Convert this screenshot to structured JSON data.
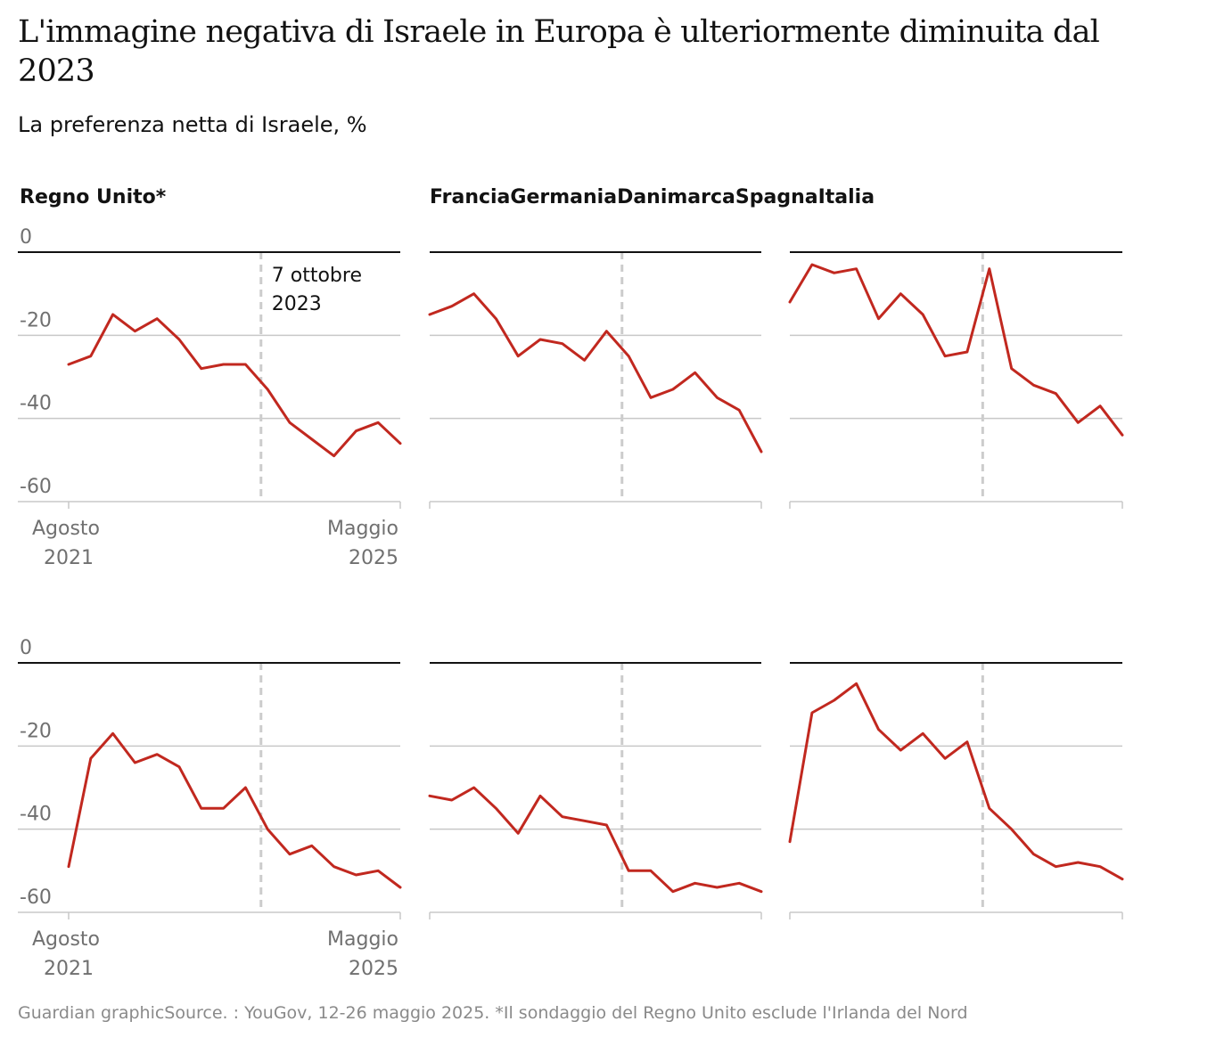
{
  "title": "L'immagine negativa di Israele in Europa è ulteriormente diminuita dal 2023",
  "subtitle": "La preferenza netta di Israele, %",
  "footer": "Guardian graphicSource. : YouGov, 12-26 maggio 2025. *Il sondaggio del Regno Unito esclude l'Irlanda del Nord",
  "colors": {
    "line": "#c1281f",
    "grid": "#c8c8c8",
    "zero": "#121212",
    "marker": "#cccccc"
  },
  "chart_data": {
    "type": "line",
    "layout": "small-multiples",
    "ylim": [
      -60,
      0
    ],
    "yticks": [
      0,
      -20,
      -40,
      -60
    ],
    "ytick_labels": [
      "0",
      "-20",
      "-40",
      "-60"
    ],
    "x_start_label": [
      "Agosto",
      "2021"
    ],
    "x_end_label": [
      "Maggio",
      "2025"
    ],
    "marker_label": [
      "7 ottobre",
      "2023"
    ],
    "marker_index": 8.7,
    "panels": [
      {
        "name": "Regno Unito*",
        "values": [
          -27,
          -25,
          -15,
          -19,
          -16,
          -21,
          -28,
          -27,
          -27,
          -33,
          -41,
          -45,
          -49,
          -43,
          -41,
          -46
        ]
      },
      {
        "name": "Francia",
        "values": [
          -15,
          -13,
          -10,
          -16,
          -25,
          -21,
          -22,
          -26,
          -19,
          -25,
          -35,
          -33,
          -29,
          -35,
          -38,
          -48
        ]
      },
      {
        "name": "Germania",
        "values": [
          -12,
          -3,
          -5,
          -4,
          -16,
          -10,
          -15,
          -25,
          -24,
          -4,
          -28,
          -32,
          -34,
          -41,
          -37,
          -44
        ]
      },
      {
        "name": "Danimarca",
        "values": [
          -49,
          -23,
          -17,
          -24,
          -22,
          -25,
          -35,
          -35,
          -30,
          -40,
          -46,
          -44,
          -49,
          -51,
          -50,
          -54
        ]
      },
      {
        "name": "Spagna",
        "values": [
          -32,
          -33,
          -30,
          -35,
          -41,
          -32,
          -37,
          -38,
          -39,
          -50,
          -50,
          -55,
          -53,
          -54,
          -53,
          -55
        ]
      },
      {
        "name": "Italia",
        "values": [
          -43,
          -12,
          -9,
          -5,
          -16,
          -21,
          -17,
          -23,
          -19,
          -35,
          -40,
          -46,
          -49,
          -48,
          -49,
          -52
        ]
      }
    ]
  }
}
